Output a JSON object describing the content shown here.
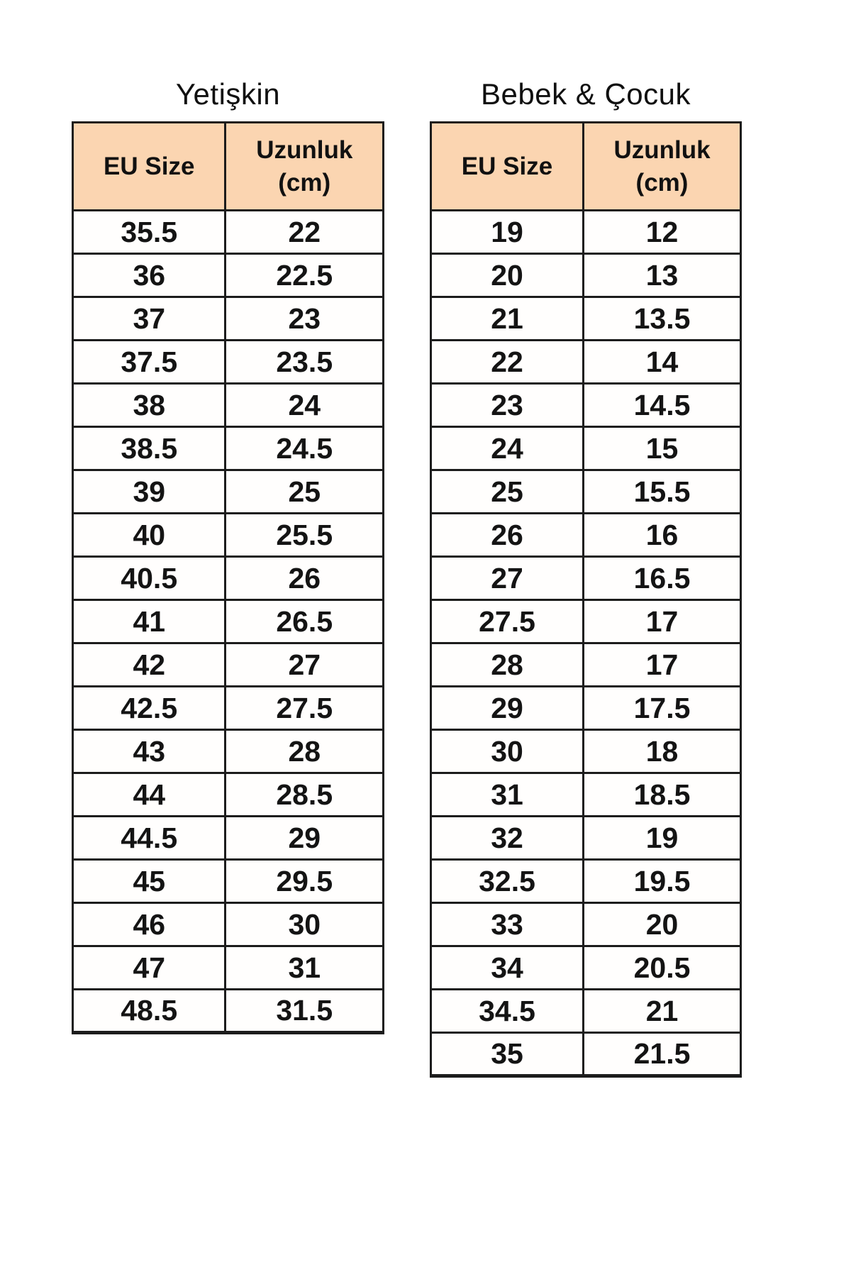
{
  "page": {
    "background": "#ffffff"
  },
  "colors": {
    "header_bg": "#fbd5b1",
    "border": "#1c1c1c",
    "text": "#141414"
  },
  "tables": [
    {
      "title": "Yetişkin",
      "col1_header": "EU Size",
      "col2_header_line1": "Uzunluk",
      "col2_header_line2": "(cm)",
      "rows": [
        [
          "35.5",
          "22"
        ],
        [
          "36",
          "22.5"
        ],
        [
          "37",
          "23"
        ],
        [
          "37.5",
          "23.5"
        ],
        [
          "38",
          "24"
        ],
        [
          "38.5",
          "24.5"
        ],
        [
          "39",
          "25"
        ],
        [
          "40",
          "25.5"
        ],
        [
          "40.5",
          "26"
        ],
        [
          "41",
          "26.5"
        ],
        [
          "42",
          "27"
        ],
        [
          "42.5",
          "27.5"
        ],
        [
          "43",
          "28"
        ],
        [
          "44",
          "28.5"
        ],
        [
          "44.5",
          "29"
        ],
        [
          "45",
          "29.5"
        ],
        [
          "46",
          "30"
        ],
        [
          "47",
          "31"
        ],
        [
          "48.5",
          "31.5"
        ]
      ]
    },
    {
      "title": "Bebek & Çocuk",
      "col1_header": "EU Size",
      "col2_header_line1": "Uzunluk",
      "col2_header_line2": "(cm)",
      "rows": [
        [
          "19",
          "12"
        ],
        [
          "20",
          "13"
        ],
        [
          "21",
          "13.5"
        ],
        [
          "22",
          "14"
        ],
        [
          "23",
          "14.5"
        ],
        [
          "24",
          "15"
        ],
        [
          "25",
          "15.5"
        ],
        [
          "26",
          "16"
        ],
        [
          "27",
          "16.5"
        ],
        [
          "27.5",
          "17"
        ],
        [
          "28",
          "17"
        ],
        [
          "29",
          "17.5"
        ],
        [
          "30",
          "18"
        ],
        [
          "31",
          "18.5"
        ],
        [
          "32",
          "19"
        ],
        [
          "32.5",
          "19.5"
        ],
        [
          "33",
          "20"
        ],
        [
          "34",
          "20.5"
        ],
        [
          "34.5",
          "21"
        ],
        [
          "35",
          "21.5"
        ]
      ]
    }
  ]
}
